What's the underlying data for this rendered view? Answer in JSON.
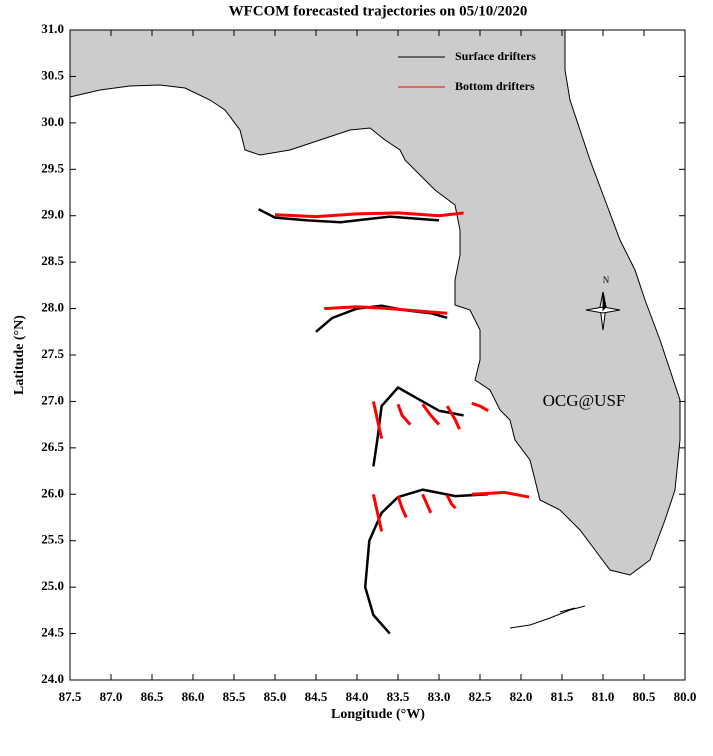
{
  "chart_data": {
    "type": "trajectory",
    "title": "WFCOM forecasted trajectories on 05/10/2020",
    "x_label": "Longitude (°W)",
    "y_label": "Latitude (°N)",
    "annotation": {
      "text": "OCG@USF",
      "color": "#ff0000"
    },
    "compass": "N",
    "legend": "upper right",
    "xlim": [
      87.5,
      80.0
    ],
    "ylim": [
      24.0,
      31.0
    ],
    "xticks": [
      87.5,
      {
        "value": 87,
        "label": "87.0"
      },
      86.5,
      {
        "value": 86,
        "label": "86.0"
      },
      85.5,
      {
        "value": 85,
        "label": "85.0"
      },
      84.5,
      {
        "value": 84,
        "label": "84.0"
      },
      83.5,
      {
        "value": 83,
        "label": "83.0"
      },
      82.5,
      {
        "value": 82,
        "label": "82.0"
      },
      81.5,
      {
        "value": 81,
        "label": "81.0"
      },
      80.5,
      {
        "value": 80,
        "label": "80.0"
      }
    ],
    "yticks": [
      {
        "value": 24,
        "label": "24.0"
      },
      24.5,
      {
        "value": 25,
        "label": "25.0"
      },
      25.5,
      {
        "value": 26,
        "label": "26.0"
      },
      26.5,
      {
        "value": 27,
        "label": "27.0"
      },
      27.5,
      {
        "value": 28,
        "label": "28.0"
      },
      28.5,
      {
        "value": 29,
        "label": "29.0"
      },
      29.5,
      {
        "value": 30,
        "label": "30.0"
      },
      30.5,
      {
        "value": 31,
        "label": "31.0"
      }
    ],
    "series": [
      {
        "name": "Surface drifters",
        "color": "#000000",
        "tracks": [
          {
            "x": [
              85.2,
              85.0,
              84.6,
              84.2,
              83.9,
              83.6,
              83.3,
              83.0
            ],
            "y": [
              29.07,
              28.98,
              28.95,
              28.93,
              28.96,
              28.99,
              28.97,
              28.95
            ]
          },
          {
            "x": [
              84.5,
              84.3,
              84.0,
              83.7,
              83.4,
              83.1,
              82.9
            ],
            "y": [
              27.75,
              27.9,
              28.0,
              28.03,
              27.98,
              27.95,
              27.9
            ]
          },
          {
            "x": [
              83.8,
              83.75,
              83.7,
              83.5,
              83.3,
              83.0,
              82.7
            ],
            "y": [
              26.3,
              26.6,
              26.95,
              27.15,
              27.05,
              26.9,
              26.85
            ]
          },
          {
            "x": [
              83.6,
              83.8,
              83.9,
              83.85,
              83.7,
              83.5,
              83.2,
              82.8,
              82.4
            ],
            "y": [
              24.5,
              24.7,
              25.0,
              25.5,
              25.8,
              25.97,
              26.05,
              25.98,
              26.0
            ]
          }
        ]
      },
      {
        "name": "Bottom drifters",
        "color": "#ff0000",
        "tracks": [
          {
            "x": [
              85.0,
              84.5,
              84.0,
              83.5,
              83.0,
              82.7
            ],
            "y": [
              29.01,
              28.99,
              29.02,
              29.03,
              29.0,
              29.03
            ]
          },
          {
            "x": [
              84.4,
              84.0,
              83.6,
              83.2,
              82.9
            ],
            "y": [
              28.0,
              28.02,
              28.0,
              27.97,
              27.95
            ]
          },
          {
            "x": [
              83.8,
              83.75,
              83.7
            ],
            "y": [
              27.0,
              26.8,
              26.6
            ]
          },
          {
            "x": [
              83.5,
              83.45,
              83.35
            ],
            "y": [
              26.97,
              26.85,
              26.75
            ]
          },
          {
            "x": [
              83.2,
              83.1,
              83.0
            ],
            "y": [
              26.97,
              26.85,
              26.75
            ]
          },
          {
            "x": [
              82.9,
              82.8,
              82.75
            ],
            "y": [
              26.95,
              26.8,
              26.7
            ]
          },
          {
            "x": [
              82.6,
              82.5,
              82.4
            ],
            "y": [
              26.98,
              26.95,
              26.9
            ]
          },
          {
            "x": [
              83.8,
              83.75,
              83.7
            ],
            "y": [
              26.0,
              25.8,
              25.6
            ]
          },
          {
            "x": [
              83.5,
              83.45,
              83.4
            ],
            "y": [
              25.98,
              25.85,
              25.75
            ]
          },
          {
            "x": [
              83.2,
              83.15,
              83.1
            ],
            "y": [
              26.0,
              25.9,
              25.8
            ]
          },
          {
            "x": [
              82.9,
              82.85,
              82.8
            ],
            "y": [
              25.99,
              25.9,
              25.85
            ]
          },
          {
            "x": [
              82.6,
              82.4,
              82.2,
              81.9
            ],
            "y": [
              26.0,
              26.01,
              26.02,
              25.97
            ]
          }
        ]
      }
    ]
  }
}
